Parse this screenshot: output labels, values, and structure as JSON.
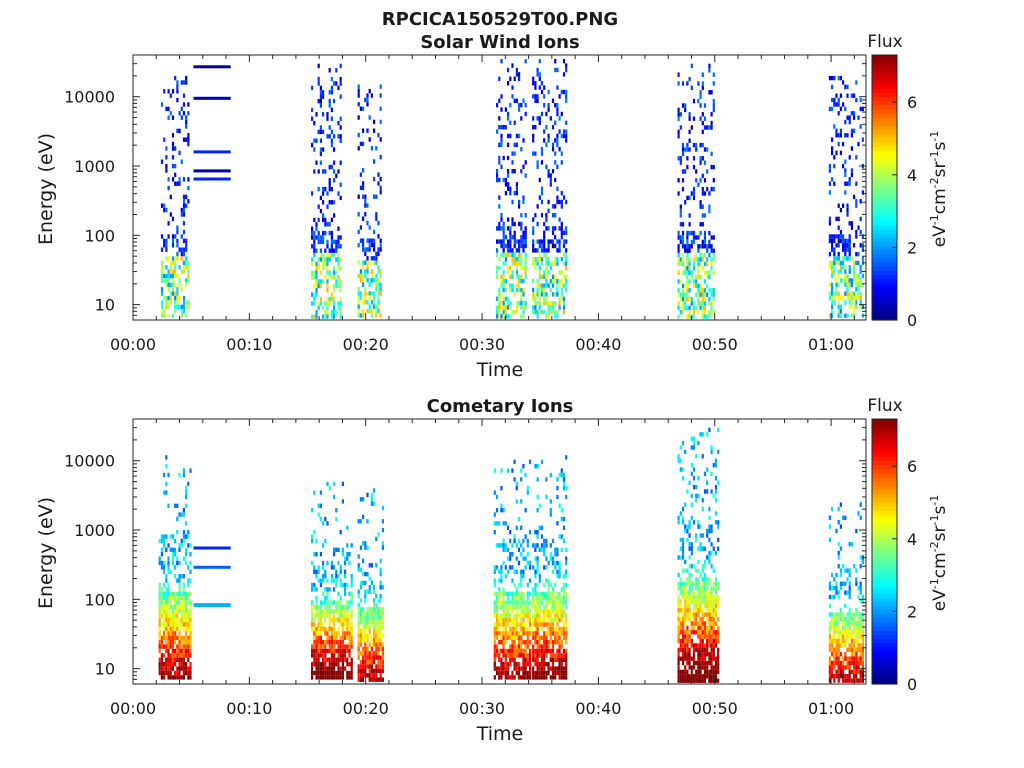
{
  "figure_title": "RPCICA150529T00.PNG",
  "chart_data": [
    {
      "type": "heatmap",
      "title": "Solar Wind Ions",
      "xlabel": "Time",
      "ylabel": "Energy (eV)",
      "x_ticks": [
        "00:00",
        "00:10",
        "00:20",
        "00:30",
        "00:40",
        "00:50",
        "01:00"
      ],
      "x_tick_minutes": [
        0,
        10,
        20,
        30,
        40,
        50,
        60
      ],
      "xlim_minutes": [
        0,
        63
      ],
      "y_scale": "log",
      "y_ticks": [
        "10",
        "100",
        "1000",
        "10000"
      ],
      "y_tick_values": [
        10,
        100,
        1000,
        10000
      ],
      "ylim": [
        6,
        40000
      ],
      "colorbar": {
        "label": "Flux",
        "units": "eV^-1 cm^-2 sr^-1 s^-1",
        "min": 0,
        "max": 7.3,
        "ticks": [
          "0",
          "2",
          "4",
          "6"
        ],
        "tick_values": [
          0,
          2,
          4,
          6
        ],
        "colormap": "jet"
      },
      "bursts": [
        {
          "t_start": 2.4,
          "t_end": 4.8,
          "e_min": 7,
          "e_max": 20000,
          "intensity": 0.45
        },
        {
          "t_start": 15.3,
          "t_end": 17.8,
          "e_min": 7,
          "e_max": 30000,
          "intensity": 0.45
        },
        {
          "t_start": 19.3,
          "t_end": 21.2,
          "e_min": 7,
          "e_max": 15000,
          "intensity": 0.4
        },
        {
          "t_start": 31.2,
          "t_end": 33.8,
          "e_min": 7,
          "e_max": 35000,
          "intensity": 0.45
        },
        {
          "t_start": 34.3,
          "t_end": 37.2,
          "e_min": 7,
          "e_max": 35000,
          "intensity": 0.5
        },
        {
          "t_start": 46.8,
          "t_end": 50.0,
          "e_min": 7,
          "e_max": 30000,
          "intensity": 0.45
        },
        {
          "t_start": 59.8,
          "t_end": 62.7,
          "e_min": 7,
          "e_max": 20000,
          "intensity": 0.4
        }
      ],
      "lines": [
        {
          "t_start": 5.2,
          "t_end": 8.4,
          "energy": 27000,
          "level": 0.03
        },
        {
          "t_start": 5.2,
          "t_end": 8.4,
          "energy": 9500,
          "level": 0.06
        },
        {
          "t_start": 5.2,
          "t_end": 8.4,
          "energy": 1600,
          "level": 0.16
        },
        {
          "t_start": 5.2,
          "t_end": 8.4,
          "energy": 850,
          "level": 0.05
        },
        {
          "t_start": 5.2,
          "t_end": 8.4,
          "energy": 650,
          "level": 0.16
        }
      ]
    },
    {
      "type": "heatmap",
      "title": "Cometary Ions",
      "xlabel": "Time",
      "ylabel": "Energy (eV)",
      "x_ticks": [
        "00:00",
        "00:10",
        "00:20",
        "00:30",
        "00:40",
        "00:50",
        "01:00"
      ],
      "x_tick_minutes": [
        0,
        10,
        20,
        30,
        40,
        50,
        60
      ],
      "xlim_minutes": [
        0,
        63
      ],
      "y_scale": "log",
      "y_ticks": [
        "10",
        "100",
        "1000",
        "10000"
      ],
      "y_tick_values": [
        10,
        100,
        1000,
        10000
      ],
      "ylim": [
        6,
        40000
      ],
      "colorbar": {
        "label": "Flux",
        "units": "eV^-1 cm^-2 sr^-1 s^-1",
        "min": 0,
        "max": 7.3,
        "ticks": [
          "0",
          "2",
          "4",
          "6"
        ],
        "tick_values": [
          0,
          2,
          4,
          6
        ],
        "colormap": "jet"
      },
      "bursts": [
        {
          "t_start": 2.2,
          "t_end": 5.0,
          "e_min": 7,
          "e_max": 12000,
          "intensity": 0.85
        },
        {
          "t_start": 15.3,
          "t_end": 18.8,
          "e_min": 7,
          "e_max": 5000,
          "intensity": 0.95
        },
        {
          "t_start": 19.3,
          "t_end": 21.5,
          "e_min": 7,
          "e_max": 4000,
          "intensity": 0.8
        },
        {
          "t_start": 31.0,
          "t_end": 34.2,
          "e_min": 7,
          "e_max": 12000,
          "intensity": 0.85
        },
        {
          "t_start": 34.3,
          "t_end": 37.3,
          "e_min": 7,
          "e_max": 12000,
          "intensity": 0.9
        },
        {
          "t_start": 46.8,
          "t_end": 50.3,
          "e_min": 7,
          "e_max": 30000,
          "intensity": 0.95
        },
        {
          "t_start": 59.8,
          "t_end": 62.8,
          "e_min": 7,
          "e_max": 2500,
          "intensity": 0.8
        }
      ],
      "lines": [
        {
          "t_start": 5.2,
          "t_end": 8.4,
          "energy": 550,
          "level": 0.16
        },
        {
          "t_start": 5.2,
          "t_end": 8.4,
          "energy": 290,
          "level": 0.22
        },
        {
          "t_start": 5.2,
          "t_end": 8.4,
          "energy": 84,
          "level": 0.3
        }
      ]
    }
  ]
}
